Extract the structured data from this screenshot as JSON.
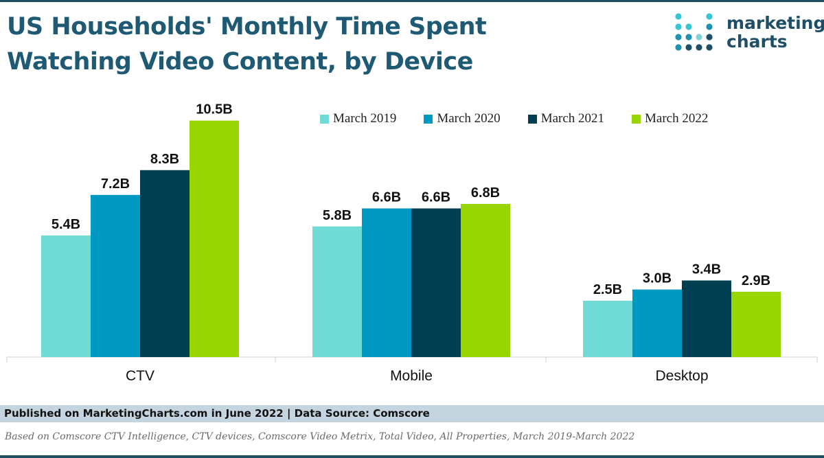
{
  "header": {
    "title_line1": "US Households' Monthly Time Spent",
    "title_line2": "Watching Video Content, by Device"
  },
  "logo": {
    "line1": "marketing",
    "line2": "charts",
    "dot_colors": [
      "#38c5d1",
      "#1e90b0",
      "#1e4f66",
      "#7dd3d8"
    ]
  },
  "chart_data": {
    "type": "bar",
    "categories": [
      "CTV",
      "Mobile",
      "Desktop"
    ],
    "series": [
      {
        "name": "March 2019",
        "color": "#70dbd6",
        "values": [
          5.4,
          5.8,
          2.5
        ],
        "labels": [
          "5.4B",
          "5.8B",
          "2.5B"
        ]
      },
      {
        "name": "March 2020",
        "color": "#0099c2",
        "values": [
          7.2,
          6.6,
          3.0
        ],
        "labels": [
          "7.2B",
          "6.6B",
          "3.0B"
        ]
      },
      {
        "name": "March 2021",
        "color": "#003e52",
        "values": [
          8.3,
          6.6,
          3.4
        ],
        "labels": [
          "8.3B",
          "6.6B",
          "3.4B"
        ]
      },
      {
        "name": "March 2022",
        "color": "#97d600",
        "values": [
          10.5,
          6.8,
          2.9
        ],
        "labels": [
          "10.5B",
          "6.8B",
          "2.9B"
        ]
      }
    ],
    "legend_position": "top-right",
    "grid": false
  },
  "footer": {
    "published": "Published on MarketingCharts.com in June 2022 | Data Source: Comscore",
    "note": "Based on Comscore CTV Intelligence, CTV devices, Comscore Video Metrix, Total Video, All Properties, March 2019-March 2022"
  }
}
